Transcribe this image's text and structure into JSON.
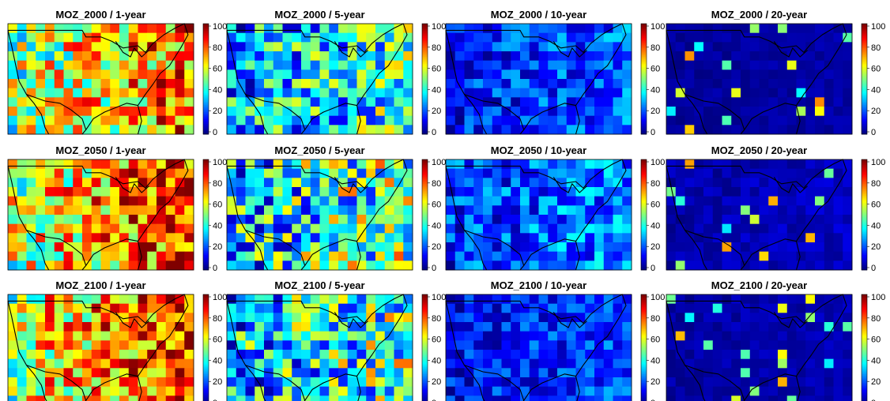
{
  "chart_data": {
    "type": "heatmap",
    "colormap": "jet",
    "color_range": [
      0,
      100
    ],
    "colorbar_ticks": [
      "0",
      "20",
      "40",
      "60",
      "80",
      "100"
    ],
    "grid": {
      "rows": 12,
      "cols": 20
    },
    "panels": [
      {
        "title": "MOZ_2000 / 1-year",
        "level": 0.62
      },
      {
        "title": "MOZ_2000 / 5-year",
        "level": 0.34
      },
      {
        "title": "MOZ_2000 / 10-year",
        "level": 0.17
      },
      {
        "title": "MOZ_2000 / 20-year",
        "level": 0.03
      },
      {
        "title": "MOZ_2050 / 1-year",
        "level": 0.68
      },
      {
        "title": "MOZ_2050 / 5-year",
        "level": 0.4
      },
      {
        "title": "MOZ_2050 / 10-year",
        "level": 0.2
      },
      {
        "title": "MOZ_2050 / 20-year",
        "level": 0.05
      },
      {
        "title": "MOZ_2100 / 1-year",
        "level": 0.7
      },
      {
        "title": "MOZ_2100 / 5-year",
        "level": 0.38
      },
      {
        "title": "MOZ_2100 / 10-year",
        "level": 0.15
      },
      {
        "title": "MOZ_2100 / 20-year",
        "level": 0.04
      }
    ]
  }
}
